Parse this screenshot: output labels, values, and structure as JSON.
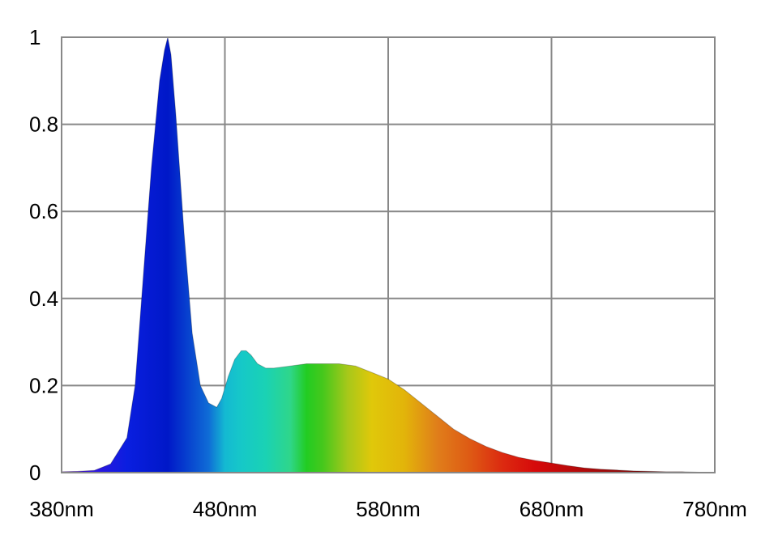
{
  "chart_data": {
    "type": "area",
    "title": "",
    "xlabel": "",
    "ylabel": "",
    "xlim": [
      380,
      780
    ],
    "ylim": [
      0,
      1
    ],
    "grid": true,
    "legend": "none",
    "x_ticks": [
      {
        "value": 380,
        "label": "380nm"
      },
      {
        "value": 480,
        "label": "480nm"
      },
      {
        "value": 580,
        "label": "580nm"
      },
      {
        "value": 680,
        "label": "680nm"
      },
      {
        "value": 780,
        "label": "780nm"
      }
    ],
    "y_ticks": [
      {
        "value": 0,
        "label": "0"
      },
      {
        "value": 0.2,
        "label": "0.2"
      },
      {
        "value": 0.4,
        "label": "0.4"
      },
      {
        "value": 0.6,
        "label": "0.6"
      },
      {
        "value": 0.8,
        "label": "0.8"
      },
      {
        "value": 1,
        "label": "1"
      }
    ],
    "series": [
      {
        "x": [
          380,
          390,
          400,
          410,
          420,
          425,
          430,
          435,
          440,
          443,
          445,
          447,
          450,
          455,
          460,
          465,
          470,
          475,
          478,
          482,
          486,
          490,
          493,
          496,
          500,
          505,
          510,
          520,
          530,
          540,
          550,
          560,
          570,
          580,
          590,
          600,
          610,
          620,
          630,
          640,
          650,
          660,
          670,
          680,
          690,
          700,
          710,
          720,
          730,
          740,
          750,
          760,
          770,
          780
        ],
        "y": [
          0.002,
          0.003,
          0.005,
          0.02,
          0.08,
          0.2,
          0.45,
          0.7,
          0.9,
          0.97,
          1.0,
          0.96,
          0.82,
          0.55,
          0.32,
          0.2,
          0.16,
          0.15,
          0.17,
          0.22,
          0.26,
          0.28,
          0.28,
          0.27,
          0.25,
          0.24,
          0.24,
          0.245,
          0.25,
          0.25,
          0.25,
          0.245,
          0.23,
          0.215,
          0.19,
          0.16,
          0.13,
          0.1,
          0.078,
          0.06,
          0.046,
          0.035,
          0.028,
          0.022,
          0.016,
          0.011,
          0.008,
          0.006,
          0.004,
          0.003,
          0.002,
          0.002,
          0.001,
          0.001
        ]
      }
    ],
    "fill_gradient": [
      {
        "x": 380,
        "color": "#6a0fd0"
      },
      {
        "x": 395,
        "color": "#3a14e0"
      },
      {
        "x": 420,
        "color": "#0a1ee0"
      },
      {
        "x": 445,
        "color": "#0018c8"
      },
      {
        "x": 470,
        "color": "#0f6cd6"
      },
      {
        "x": 480,
        "color": "#14b9d2"
      },
      {
        "x": 490,
        "color": "#16c8c8"
      },
      {
        "x": 505,
        "color": "#1ad2b4"
      },
      {
        "x": 520,
        "color": "#2fd68a"
      },
      {
        "x": 530,
        "color": "#22cc22"
      },
      {
        "x": 540,
        "color": "#46c81c"
      },
      {
        "x": 555,
        "color": "#a6c81a"
      },
      {
        "x": 570,
        "color": "#e0c80a"
      },
      {
        "x": 590,
        "color": "#e2b40a"
      },
      {
        "x": 610,
        "color": "#e07e1a"
      },
      {
        "x": 630,
        "color": "#de5a14"
      },
      {
        "x": 650,
        "color": "#dc2a10"
      },
      {
        "x": 670,
        "color": "#d60a0a"
      },
      {
        "x": 700,
        "color": "#b00a0a"
      },
      {
        "x": 740,
        "color": "#7a0a0a"
      },
      {
        "x": 780,
        "color": "#4a0505"
      }
    ]
  }
}
